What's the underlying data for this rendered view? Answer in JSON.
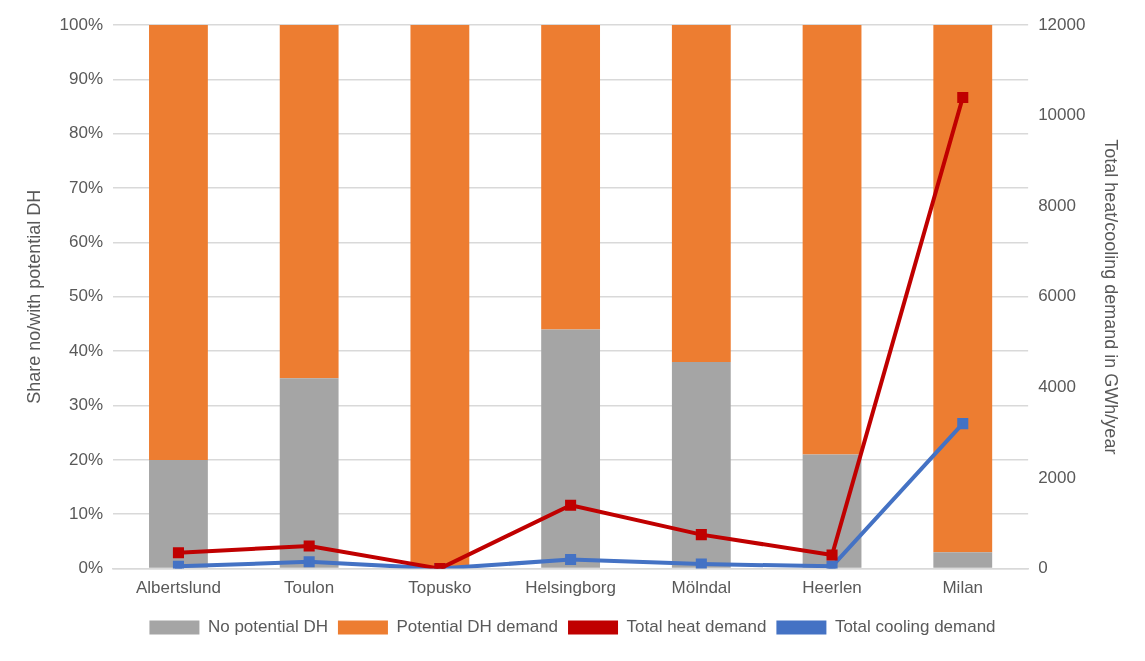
{
  "chart_data": {
    "type": "bar",
    "stacked": true,
    "categories": [
      "Albertslund",
      "Toulon",
      "Topusko",
      "Helsingborg",
      "Mölndal",
      "Heerlen",
      "Milan"
    ],
    "ylabel": "Share no/with potential DH",
    "y2label": "Total heat/cooling demand in GWh/year",
    "ylim": [
      0,
      100
    ],
    "yticks": [
      {
        "value": 0,
        "label": "0%"
      },
      {
        "value": 10,
        "label": "10%"
      },
      {
        "value": 20,
        "label": "20%"
      },
      {
        "value": 30,
        "label": "30%"
      },
      {
        "value": 40,
        "label": "40%"
      },
      {
        "value": 50,
        "label": "50%"
      },
      {
        "value": 60,
        "label": "60%"
      },
      {
        "value": 70,
        "label": "70%"
      },
      {
        "value": 80,
        "label": "80%"
      },
      {
        "value": 90,
        "label": "90%"
      },
      {
        "value": 100,
        "label": "100%"
      }
    ],
    "y2lim": [
      0,
      12000
    ],
    "y2ticks": [
      0,
      2000,
      4000,
      6000,
      8000,
      10000,
      12000
    ],
    "grid": "y",
    "legend": "bottom",
    "marker": "square",
    "series": [
      {
        "name": "No potential DH",
        "color": "#a5a5a5",
        "values": [
          20,
          35,
          0,
          44,
          38,
          21,
          3
        ]
      },
      {
        "name": "Potential DH demand",
        "color": "#ed7d31",
        "values": [
          80,
          65,
          100,
          56,
          62,
          79,
          97
        ]
      },
      {
        "name": "Total heat demand",
        "type": "line",
        "axis": "y2",
        "color": "#c00000",
        "values": [
          350,
          500,
          0,
          1400,
          750,
          300,
          10400
        ]
      },
      {
        "name": "Total cooling demand",
        "type": "line",
        "axis": "y2",
        "color": "#4472c4",
        "values": [
          50,
          150,
          0,
          200,
          100,
          50,
          3200
        ]
      }
    ]
  }
}
